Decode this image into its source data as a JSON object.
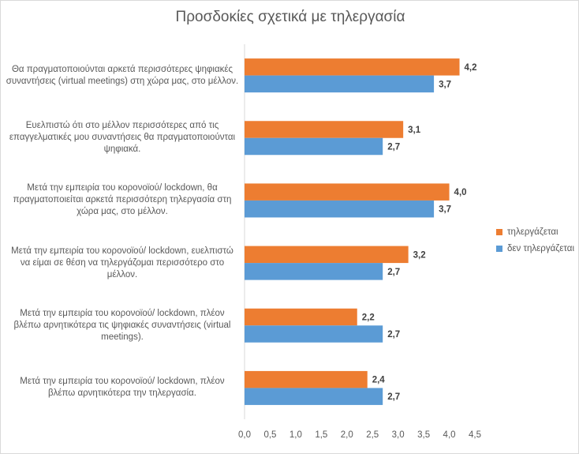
{
  "chart_data": {
    "type": "bar",
    "orientation": "horizontal",
    "title": "Προσδοκίες σχετικά με τηλεργασία",
    "categories": [
      "Θα πραγματοποιούνται αρκετά περισσότερες ψηφιακές συναντήσεις (virtual meetings) στη χώρα μας, στο μέλλον.",
      "Ευελπιστώ ότι στο μέλλον περισσότερες από τις επαγγελματικές μου συναντήσεις θα πραγματοποιούνται ψηφιακά.",
      "Μετά την εμπειρία του κορονοϊού/ lockdown, θα πραγματοποιείται αρκετά περισσότερη τηλεργασία στη χώρα μας, στο μέλλον.",
      "Μετά την εμπειρία του κορονοϊού/ lockdown, ευελπιστώ να είμαι σε θέση να τηλεργάζομαι περισσότερο στο μέλλον.",
      "Μετά την εμπειρία του κορονοϊού/ lockdown, πλέον βλέπω αρνητικότερα τις ψηφιακές συναντήσεις (virtual meetings).",
      "Μετά την εμπειρία του κορονοϊού/ lockdown, πλέον βλέπω αρνητικότερα την τηλεργασία."
    ],
    "series": [
      {
        "name": "τηλεργάζεται",
        "color": "#ED7D31",
        "values": [
          4.2,
          3.1,
          4.0,
          3.2,
          2.2,
          2.4
        ],
        "labels": [
          "4,2",
          "3,1",
          "4,0",
          "3,2",
          "2,2",
          "2,4"
        ]
      },
      {
        "name": "δεν τηλεργάζεται",
        "color": "#5B9BD5",
        "values": [
          3.7,
          2.7,
          3.7,
          2.7,
          2.7,
          2.7
        ],
        "labels": [
          "3,7",
          "2,7",
          "3,7",
          "2,7",
          "2,7",
          "2,7"
        ]
      }
    ],
    "xlim": [
      0,
      4.5
    ],
    "xticks": [
      "0,0",
      "0,5",
      "1,0",
      "1,5",
      "2,0",
      "2,5",
      "3,0",
      "3,5",
      "4,0",
      "4,5"
    ],
    "grid": false,
    "legend": "right"
  }
}
